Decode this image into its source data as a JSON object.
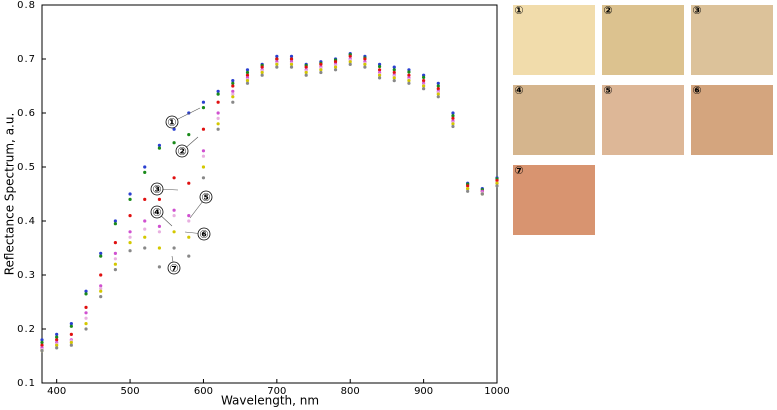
{
  "chart_data": {
    "type": "scatter",
    "xlabel": "Wavelength, nm",
    "ylabel": "Reflectance Spectrum, a.u.",
    "xlim": [
      380,
      1000
    ],
    "ylim": [
      0.1,
      0.8
    ],
    "xticks": [
      400,
      500,
      600,
      700,
      800,
      900,
      1000
    ],
    "yticks": [
      0.1,
      0.2,
      0.3,
      0.4,
      0.5,
      0.6,
      0.7,
      0.8
    ],
    "x": [
      380,
      400,
      420,
      440,
      460,
      480,
      500,
      520,
      540,
      560,
      580,
      600,
      620,
      640,
      660,
      680,
      700,
      720,
      740,
      760,
      780,
      800,
      820,
      840,
      860,
      880,
      900,
      920,
      940,
      960,
      980,
      1000
    ],
    "series": [
      {
        "name": "①",
        "color": "#2a3fd0",
        "swatch": "#f1dcab",
        "values": [
          0.18,
          0.19,
          0.21,
          0.27,
          0.34,
          0.4,
          0.45,
          0.5,
          0.54,
          0.57,
          0.6,
          0.62,
          0.64,
          0.66,
          0.68,
          0.69,
          0.705,
          0.705,
          0.69,
          0.695,
          0.7,
          0.71,
          0.705,
          0.69,
          0.685,
          0.68,
          0.67,
          0.655,
          0.6,
          0.47,
          0.46,
          0.48
        ]
      },
      {
        "name": "②",
        "color": "#1a8a1a",
        "swatch": "#dcc28f",
        "values": [
          0.175,
          0.185,
          0.205,
          0.265,
          0.335,
          0.395,
          0.44,
          0.49,
          0.535,
          0.545,
          0.56,
          0.61,
          0.635,
          0.655,
          0.675,
          0.688,
          0.7,
          0.7,
          0.688,
          0.692,
          0.698,
          0.708,
          0.702,
          0.686,
          0.68,
          0.676,
          0.666,
          0.65,
          0.595,
          0.468,
          0.458,
          0.478
        ]
      },
      {
        "name": "③",
        "color": "#e01010",
        "swatch": "#dcc29a",
        "values": [
          0.17,
          0.18,
          0.19,
          0.24,
          0.3,
          0.36,
          0.41,
          0.44,
          0.44,
          0.48,
          0.47,
          0.57,
          0.62,
          0.65,
          0.67,
          0.685,
          0.7,
          0.7,
          0.685,
          0.69,
          0.695,
          0.705,
          0.7,
          0.68,
          0.675,
          0.67,
          0.66,
          0.645,
          0.59,
          0.465,
          0.455,
          0.475
        ]
      },
      {
        "name": "④",
        "color": "#d050d0",
        "swatch": "#d5b58d",
        "values": [
          0.165,
          0.175,
          0.18,
          0.23,
          0.28,
          0.34,
          0.38,
          0.4,
          0.39,
          0.42,
          0.41,
          0.53,
          0.6,
          0.64,
          0.665,
          0.68,
          0.695,
          0.695,
          0.68,
          0.685,
          0.69,
          0.7,
          0.695,
          0.675,
          0.67,
          0.665,
          0.655,
          0.64,
          0.585,
          0.46,
          0.455,
          0.47
        ]
      },
      {
        "name": "⑤",
        "color": "#e8b0e0",
        "swatch": "#ddb797",
        "values": [
          0.162,
          0.172,
          0.178,
          0.22,
          0.275,
          0.33,
          0.37,
          0.385,
          0.38,
          0.41,
          0.4,
          0.52,
          0.59,
          0.635,
          0.662,
          0.678,
          0.692,
          0.692,
          0.678,
          0.683,
          0.688,
          0.698,
          0.692,
          0.672,
          0.668,
          0.662,
          0.652,
          0.638,
          0.582,
          0.46,
          0.452,
          0.47
        ]
      },
      {
        "name": "⑥",
        "color": "#d4c800",
        "swatch": "#d4a57e",
        "values": [
          0.16,
          0.17,
          0.175,
          0.21,
          0.27,
          0.32,
          0.36,
          0.37,
          0.35,
          0.38,
          0.37,
          0.5,
          0.58,
          0.63,
          0.66,
          0.675,
          0.69,
          0.69,
          0.675,
          0.68,
          0.685,
          0.695,
          0.69,
          0.67,
          0.665,
          0.66,
          0.65,
          0.635,
          0.58,
          0.46,
          0.45,
          0.47
        ]
      },
      {
        "name": "⑦",
        "color": "#888888",
        "swatch": "#d89470",
        "values": [
          0.16,
          0.165,
          0.17,
          0.2,
          0.26,
          0.31,
          0.345,
          0.35,
          0.315,
          0.35,
          0.335,
          0.48,
          0.57,
          0.62,
          0.655,
          0.67,
          0.685,
          0.685,
          0.67,
          0.675,
          0.68,
          0.69,
          0.685,
          0.665,
          0.66,
          0.655,
          0.645,
          0.63,
          0.575,
          0.455,
          0.45,
          0.465
        ]
      }
    ]
  }
}
